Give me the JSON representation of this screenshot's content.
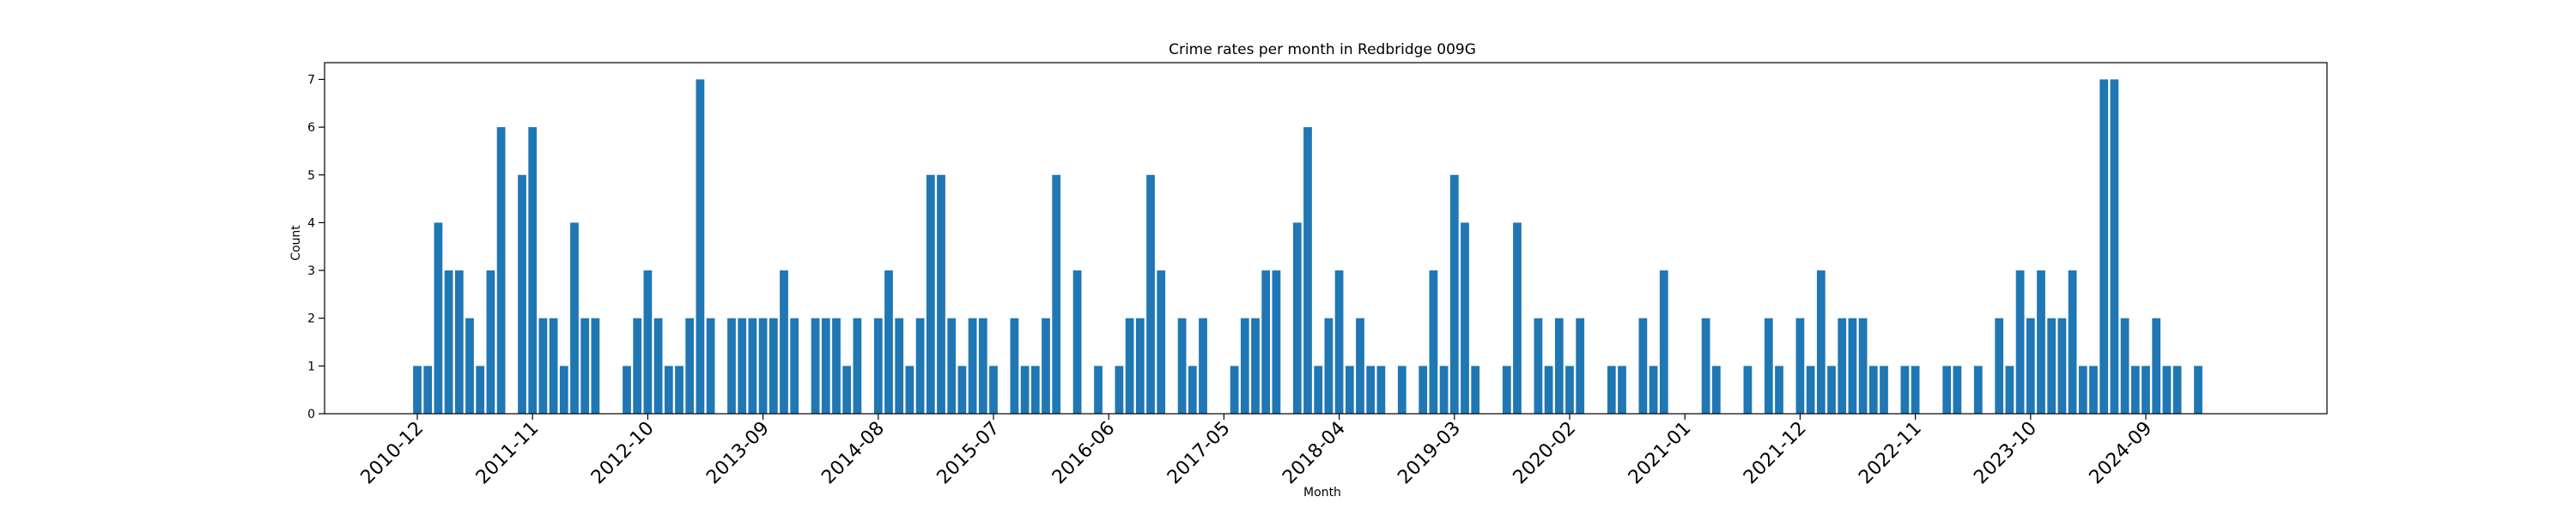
{
  "chart_data": {
    "type": "bar",
    "title": "Crime rates per month in Redbridge 009G",
    "xlabel": "Month",
    "ylabel": "Count",
    "ylim": [
      0,
      7.35
    ],
    "yticks": [
      0,
      1,
      2,
      3,
      4,
      5,
      6,
      7
    ],
    "start_month": "2010-12",
    "xticks": [
      "2010-12",
      "2011-11",
      "2012-10",
      "2013-09",
      "2014-08",
      "2015-07",
      "2016-06",
      "2017-05",
      "2018-04",
      "2019-03",
      "2020-02",
      "2021-01",
      "2021-12",
      "2022-11",
      "2023-10",
      "2024-09"
    ],
    "values": [
      1,
      1,
      4,
      3,
      3,
      2,
      1,
      3,
      6,
      0,
      5,
      6,
      2,
      2,
      1,
      4,
      2,
      2,
      0,
      0,
      1,
      2,
      3,
      2,
      1,
      1,
      2,
      7,
      2,
      0,
      2,
      2,
      2,
      2,
      2,
      3,
      2,
      0,
      2,
      2,
      2,
      1,
      2,
      0,
      2,
      3,
      2,
      1,
      2,
      5,
      5,
      2,
      1,
      2,
      2,
      1,
      0,
      2,
      1,
      1,
      2,
      5,
      0,
      3,
      0,
      1,
      0,
      1,
      2,
      2,
      5,
      3,
      0,
      2,
      1,
      2,
      0,
      0,
      1,
      2,
      2,
      3,
      3,
      0,
      4,
      6,
      1,
      2,
      3,
      1,
      2,
      1,
      1,
      0,
      1,
      0,
      1,
      3,
      1,
      5,
      4,
      1,
      0,
      0,
      1,
      4,
      0,
      2,
      1,
      2,
      1,
      2,
      0,
      0,
      1,
      1,
      0,
      2,
      1,
      3,
      0,
      0,
      0,
      2,
      1,
      0,
      0,
      1,
      0,
      2,
      1,
      0,
      2,
      1,
      3,
      1,
      2,
      2,
      2,
      1,
      1,
      0,
      1,
      1,
      0,
      0,
      1,
      1,
      0,
      1,
      0,
      2,
      1,
      3,
      2,
      3,
      2,
      2,
      3,
      1,
      1,
      7,
      7,
      2,
      1,
      1,
      2,
      1,
      1,
      0,
      1
    ],
    "color": "#1f77b4",
    "grid": false
  }
}
